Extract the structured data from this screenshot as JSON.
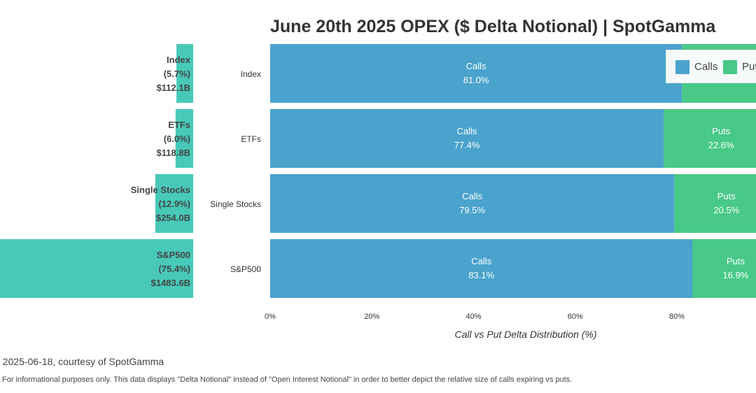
{
  "chart_data": {
    "type": "bar",
    "title": "June 20th 2025 OPEX ($ Delta Notional) | SpotGamma",
    "categories": [
      "Index",
      "ETFs",
      "Single Stocks",
      "S&P500"
    ],
    "share_panel": {
      "share_pct": [
        5.7,
        6.0,
        12.9,
        75.4
      ],
      "share_labels": [
        "(5.7%)",
        "(6.0%)",
        "(12.9%)",
        "(75.4%)"
      ],
      "notional_labels": [
        "$112.1B",
        "$118.8B",
        "$254.0B",
        "$1483.6B"
      ],
      "color": "#48c9b8"
    },
    "series": [
      {
        "name": "Calls",
        "values": [
          81.0,
          77.4,
          79.5,
          83.1
        ],
        "color": "#4aa3cc"
      },
      {
        "name": "Puts",
        "values": [
          19.0,
          22.6,
          20.5,
          16.9
        ],
        "color": "#48c987"
      }
    ],
    "xlabel": "Call vs Put Delta Distribution (%)",
    "xticks": [
      "0%",
      "20%",
      "40%",
      "60%",
      "80%"
    ],
    "xlim": [
      0,
      100
    ],
    "legend": "top-right",
    "grid": false
  },
  "footer": {
    "source": "f 2025-06-18, courtesy of SpotGamma",
    "disclaimer": "For informational purposes only. This data displays \"Delta Notional\" instead of \"Open Interest Notional\" in order to better depict the relative size of calls expiring vs puts."
  }
}
